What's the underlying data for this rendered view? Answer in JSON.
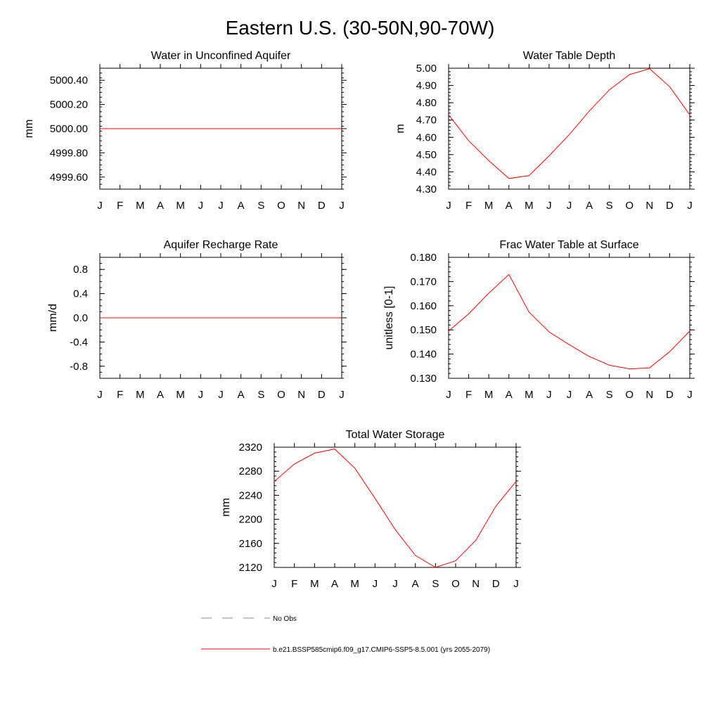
{
  "page": {
    "title": "Eastern U.S. (30-50N,90-70W)"
  },
  "month_labels": [
    "J",
    "F",
    "M",
    "A",
    "M",
    "J",
    "J",
    "A",
    "S",
    "O",
    "N",
    "D",
    "J"
  ],
  "chart_data": [
    {
      "id": "unconfined",
      "type": "line",
      "title": "Water in Unconfined Aquifer",
      "ylabel": "mm",
      "ylim": [
        4999.5,
        5000.5
      ],
      "yticks": [
        4999.6,
        4999.8,
        5000.0,
        5000.2,
        5000.4
      ],
      "ytick_labels": [
        "4999.60",
        "4999.80",
        "5000.00",
        "5000.20",
        "5000.40"
      ],
      "yminor": 0.04,
      "series": [
        {
          "name": "b.e21.BSSP585cmip6.f09_g17.CMIP6-SSP5-8.5.001 (yrs 2055-2079)",
          "color": "#ff0000",
          "values": [
            5000,
            5000,
            5000,
            5000,
            5000,
            5000,
            5000,
            5000,
            5000,
            5000,
            5000,
            5000,
            5000
          ]
        }
      ]
    },
    {
      "id": "wtd",
      "type": "line",
      "title": "Water Table Depth",
      "ylabel": "m",
      "ylim": [
        4.3,
        5.0
      ],
      "yticks": [
        4.3,
        4.4,
        4.5,
        4.6,
        4.7,
        4.8,
        4.9,
        5.0
      ],
      "ytick_labels": [
        "4.30",
        "4.40",
        "4.50",
        "4.60",
        "4.70",
        "4.80",
        "4.90",
        "5.00"
      ],
      "yminor": 0.02,
      "series": [
        {
          "name": "b.e21.BSSP585cmip6.f09_g17.CMIP6-SSP5-8.5.001 (yrs 2055-2079)",
          "color": "#ff0000",
          "values": [
            4.73,
            4.58,
            4.465,
            4.362,
            4.378,
            4.493,
            4.615,
            4.752,
            4.875,
            4.963,
            4.997,
            4.893,
            4.73
          ]
        }
      ]
    },
    {
      "id": "recharge",
      "type": "line",
      "title": "Aquifer Recharge Rate",
      "ylabel": "mm/d",
      "ylim": [
        -1.0,
        1.0
      ],
      "yticks": [
        -0.8,
        -0.4,
        0.0,
        0.4,
        0.8
      ],
      "ytick_labels": [
        "-0.8",
        "-0.4",
        "0.0",
        "0.4",
        "0.8"
      ],
      "yminor": 0.1,
      "series": [
        {
          "name": "b.e21.BSSP585cmip6.f09_g17.CMIP6-SSP5-8.5.001 (yrs 2055-2079)",
          "color": "#ff0000",
          "values": [
            0,
            0,
            0,
            0,
            0,
            0,
            0,
            0,
            0,
            0,
            0,
            0,
            0
          ]
        }
      ]
    },
    {
      "id": "fwt",
      "type": "line",
      "title": "Frac Water Table at Surface",
      "ylabel": "unitless [0-1]",
      "ylim": [
        0.13,
        0.18
      ],
      "yticks": [
        0.13,
        0.14,
        0.15,
        0.16,
        0.17,
        0.18
      ],
      "ytick_labels": [
        "0.130",
        "0.140",
        "0.150",
        "0.160",
        "0.170",
        "0.180"
      ],
      "yminor": 0.002,
      "series": [
        {
          "name": "b.e21.BSSP585cmip6.f09_g17.CMIP6-SSP5-8.5.001 (yrs 2055-2079)",
          "color": "#ff0000",
          "values": [
            0.1495,
            0.1567,
            0.1652,
            0.1729,
            0.1574,
            0.1492,
            0.1439,
            0.139,
            0.1354,
            0.1339,
            0.1343,
            0.141,
            0.1495
          ]
        }
      ]
    },
    {
      "id": "tws",
      "type": "line",
      "title": "Total Water Storage",
      "ylabel": "mm",
      "ylim": [
        2120,
        2320
      ],
      "yticks": [
        2120,
        2160,
        2200,
        2240,
        2280,
        2320
      ],
      "ytick_labels": [
        "2120",
        "2160",
        "2200",
        "2240",
        "2280",
        "2320"
      ],
      "yminor": 8,
      "series": [
        {
          "name": "b.e21.BSSP585cmip6.f09_g17.CMIP6-SSP5-8.5.001 (yrs 2055-2079)",
          "color": "#ff0000",
          "values": [
            2263,
            2292,
            2310,
            2317,
            2285,
            2235,
            2183,
            2140,
            2120,
            2131,
            2165,
            2222,
            2263
          ]
        }
      ]
    }
  ],
  "legend": {
    "entries": [
      {
        "label": "No Obs",
        "style": "dashed",
        "color": "#888888"
      },
      {
        "label": "b.e21.BSSP585cmip6.f09_g17.CMIP6-SSP5-8.5.001 (yrs 2055-2079)",
        "style": "solid",
        "color": "#ff0000"
      }
    ]
  }
}
